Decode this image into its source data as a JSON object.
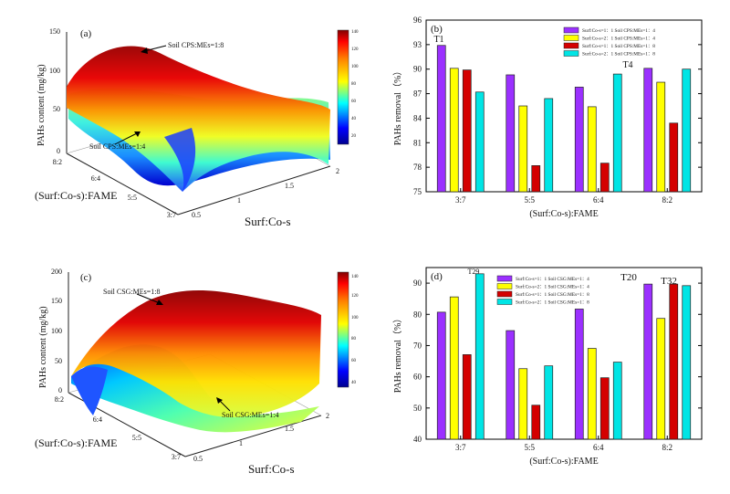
{
  "panels": {
    "a": {
      "label": "(a)",
      "zlabel": "PAHs content (mg/kg)",
      "xlabel": "Surf:Co-s",
      "ylabel": "(Surf:Co-s):FAME",
      "zticks": [
        "150",
        "100",
        "50",
        "0"
      ],
      "xticks": [
        "0.5",
        "1",
        "1.5",
        "2"
      ],
      "yticks": [
        "8:2",
        "6:4",
        "5:5",
        "3:7"
      ],
      "colorbar_ticks": [
        "140",
        "120",
        "100",
        "80",
        "60",
        "40",
        "20"
      ],
      "annot_top": "Soil CPS:MEs=1:8",
      "annot_bottom": "Soil CPS:MEs=1:4"
    },
    "c": {
      "label": "(c)",
      "zlabel": "PAHs content (mg/kg)",
      "xlabel": "Surf:Co-s",
      "ylabel": "(Surf:Co-s):FAME",
      "zticks": [
        "200",
        "150",
        "100",
        "50",
        "0"
      ],
      "xticks": [
        "0.5",
        "1",
        "1.5",
        "2"
      ],
      "yticks": [
        "8:2",
        "6:4",
        "5:5",
        "3:7"
      ],
      "colorbar_ticks": [
        "140",
        "120",
        "100",
        "80",
        "60",
        "40"
      ],
      "annot_top": "Soil CSG:MEs=1:8",
      "annot_bottom": "Soil CSG:MEs=1:4"
    }
  },
  "colors": {
    "purple": "#9b30ff",
    "yellow": "#ffff00",
    "red": "#d40000",
    "cyan": "#00e5e5"
  },
  "chart_data": [
    {
      "type": "bar",
      "panel_label": "(b)",
      "categories": [
        "3:7",
        "5:5",
        "6:4",
        "8:2"
      ],
      "xlabel": "(Surf:Co-s):FAME",
      "ylabel": "PAHs removal（%）",
      "ylim": [
        75,
        96
      ],
      "yticks": [
        75,
        78,
        81,
        84,
        87,
        90,
        93,
        96
      ],
      "series": [
        {
          "name": "Surf:Co-s=1：1 Soil CPS:MEs=1：4",
          "values": [
            92.9,
            89.3,
            87.8,
            90.1
          ]
        },
        {
          "name": "Surf:Co-s=2：1 Soil CPS:MEs=1：4",
          "values": [
            90.1,
            85.5,
            85.4,
            88.4
          ]
        },
        {
          "name": "Surf:Co-s=1：1 Soil CPS:MEs=1：8",
          "values": [
            89.9,
            78.2,
            78.5,
            83.4
          ]
        },
        {
          "name": "Surf:Co-s=2：1 Soil CPS:MEs=1：8",
          "values": [
            87.2,
            86.4,
            89.4,
            90.0
          ]
        }
      ],
      "annotations": [
        {
          "text": "T1",
          "category": 0
        },
        {
          "text": "T4",
          "category": 3
        }
      ]
    },
    {
      "type": "bar",
      "panel_label": "(d)",
      "categories": [
        "3:7",
        "5:5",
        "6:4",
        "8:2"
      ],
      "xlabel": "(Surf:Co-s):FAME",
      "ylabel": "PAHs removal（%）",
      "ylim": [
        40,
        95
      ],
      "yticks": [
        40,
        50,
        60,
        70,
        80,
        90
      ],
      "series": [
        {
          "name": "Surf:Co-s=1：1 Soil CSG:MEs=1：4",
          "values": [
            80.7,
            74.8,
            81.7,
            89.7
          ]
        },
        {
          "name": "Surf:Co-s=2：1 Soil CSG:MEs=1：4",
          "values": [
            85.6,
            62.6,
            69.1,
            78.7
          ]
        },
        {
          "name": "Surf:Co-s=1：1 Soil CSG:MEs=1：8",
          "values": [
            67.1,
            50.9,
            59.7,
            89.7
          ]
        },
        {
          "name": "Surf:Co-s=2：1 Soil CSG:MEs=1：8",
          "values": [
            93.0,
            63.5,
            64.7,
            89.2
          ]
        }
      ],
      "annotations": [
        {
          "text": "T29",
          "category": 0
        },
        {
          "text": "T20",
          "category": 3
        },
        {
          "text": "T32",
          "category": 3
        }
      ]
    }
  ]
}
